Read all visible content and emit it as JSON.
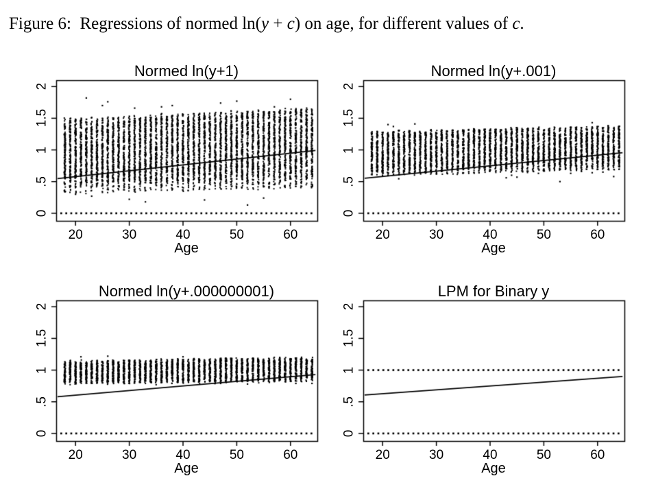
{
  "page": {
    "background": "#ffffff",
    "ink_color": "#000000"
  },
  "caption": {
    "segments": [
      {
        "text": "Figure 6:  Regressions of normed ln(",
        "italic": false
      },
      {
        "text": "y",
        "italic": true
      },
      {
        "text": " + ",
        "italic": false
      },
      {
        "text": "c",
        "italic": true
      },
      {
        "text": ") on age, for different values of ",
        "italic": false
      },
      {
        "text": "c",
        "italic": true
      },
      {
        "text": ".",
        "italic": false
      }
    ]
  },
  "chart_data": [
    {
      "type": "scatter",
      "title": "Normed ln(y+1)",
      "xlabel": "Age",
      "ylabel": "",
      "xlim": [
        16.4,
        65.0
      ],
      "ylim": [
        -0.12,
        2.1
      ],
      "x_ticks": [
        20,
        30,
        40,
        50,
        60
      ],
      "x_tick_labels": [
        "20",
        "30",
        "40",
        "50",
        "60"
      ],
      "y_ticks": [
        0,
        0.5,
        1,
        1.5,
        2
      ],
      "y_tick_labels": [
        "0",
        ".5",
        "1",
        "1.5",
        "2"
      ],
      "dotted_lines": [
        0
      ],
      "regression_line": {
        "x": [
          18,
          64
        ],
        "y": [
          0.56,
          0.985
        ]
      },
      "strips": {
        "ages": [
          18,
          64
        ],
        "seed": 7,
        "core_low": [
          0.5,
          0.575
        ],
        "core_high": [
          1.43,
          1.6
        ],
        "tail_low": [
          0.31,
          0.4
        ],
        "tail_high": [
          1.5,
          1.66
        ],
        "n_core": 115,
        "n_tail_low": 10,
        "n_tail_high": 5
      },
      "outliers": [
        [
          20,
          0.3
        ],
        [
          22,
          1.82
        ],
        [
          23,
          0.27
        ],
        [
          25,
          1.7
        ],
        [
          26,
          1.76
        ],
        [
          30,
          0.22
        ],
        [
          31,
          1.66
        ],
        [
          33,
          0.18
        ],
        [
          36,
          1.68
        ],
        [
          38,
          1.7
        ],
        [
          44,
          0.21
        ],
        [
          47,
          1.74
        ],
        [
          50,
          1.77
        ],
        [
          52,
          0.13
        ],
        [
          55,
          0.24
        ],
        [
          57,
          1.68
        ],
        [
          60,
          1.8
        ],
        [
          63,
          1.66
        ]
      ]
    },
    {
      "type": "scatter",
      "title": "Normed ln(y+.001)",
      "xlabel": "Age",
      "ylabel": "",
      "xlim": [
        16.4,
        65.0
      ],
      "ylim": [
        -0.12,
        2.1
      ],
      "x_ticks": [
        20,
        30,
        40,
        50,
        60
      ],
      "x_tick_labels": [
        "20",
        "30",
        "40",
        "50",
        "60"
      ],
      "y_ticks": [
        0,
        0.5,
        1,
        1.5,
        2
      ],
      "y_tick_labels": [
        "0",
        ".5",
        "1",
        "1.5",
        "2"
      ],
      "dotted_lines": [
        0
      ],
      "regression_line": {
        "x": [
          18,
          64
        ],
        "y": [
          0.565,
          0.95
        ]
      },
      "strips": {
        "ages": [
          18,
          64
        ],
        "seed": 11,
        "core_low": [
          0.67,
          0.77
        ],
        "core_high": [
          1.26,
          1.35
        ],
        "tail_low": [
          0.59,
          0.68
        ],
        "tail_high": [
          1.29,
          1.38
        ],
        "n_core": 85,
        "n_tail_low": 7,
        "n_tail_high": 4
      },
      "outliers": [
        [
          21,
          1.4
        ],
        [
          22,
          1.37
        ],
        [
          23,
          0.545
        ],
        [
          26,
          1.41
        ],
        [
          30,
          0.62
        ],
        [
          43,
          0.56
        ],
        [
          44,
          0.6
        ],
        [
          45,
          0.57
        ],
        [
          49,
          0.63
        ],
        [
          53,
          0.5
        ],
        [
          55,
          0.63
        ],
        [
          57,
          0.66
        ],
        [
          59,
          1.43
        ],
        [
          59,
          0.64
        ],
        [
          61,
          0.65
        ],
        [
          62,
          1.38
        ],
        [
          63,
          0.58
        ]
      ]
    },
    {
      "type": "scatter",
      "title": "Normed ln(y+.000000001)",
      "xlabel": "Age",
      "ylabel": "",
      "xlim": [
        16.4,
        65.0
      ],
      "ylim": [
        -0.12,
        2.1
      ],
      "x_ticks": [
        20,
        30,
        40,
        50,
        60
      ],
      "x_tick_labels": [
        "20",
        "30",
        "40",
        "50",
        "60"
      ],
      "y_ticks": [
        0,
        0.5,
        1,
        1.5,
        2
      ],
      "y_tick_labels": [
        "0",
        ".5",
        "1",
        "1.5",
        "2"
      ],
      "dotted_lines": [
        0
      ],
      "regression_line": {
        "x": [
          18,
          64
        ],
        "y": [
          0.59,
          0.925
        ]
      },
      "strips": {
        "ages": [
          18,
          64
        ],
        "seed": 13,
        "core_low": [
          0.805,
          0.85
        ],
        "core_high": [
          1.125,
          1.18
        ],
        "tail_low": [
          0.78,
          0.81
        ],
        "tail_high": [
          1.15,
          1.2
        ],
        "n_core": 65,
        "n_tail_low": 3,
        "n_tail_high": 3
      },
      "outliers": [
        [
          21,
          1.21
        ],
        [
          26,
          1.22
        ],
        [
          35,
          0.77
        ],
        [
          40,
          1.21
        ],
        [
          47,
          0.79
        ],
        [
          52,
          0.78
        ],
        [
          58,
          1.2
        ],
        [
          61,
          0.79
        ],
        [
          64,
          0.79
        ]
      ]
    },
    {
      "type": "scatter",
      "title": "LPM for Binary y",
      "xlabel": "Age",
      "ylabel": "",
      "xlim": [
        16.4,
        65.0
      ],
      "ylim": [
        -0.12,
        2.1
      ],
      "x_ticks": [
        20,
        30,
        40,
        50,
        60
      ],
      "x_tick_labels": [
        "20",
        "30",
        "40",
        "50",
        "60"
      ],
      "y_ticks": [
        0,
        0.5,
        1,
        1.5,
        2
      ],
      "y_tick_labels": [
        "0",
        ".5",
        "1",
        "1.5",
        "2"
      ],
      "dotted_lines": [
        0,
        1
      ],
      "regression_line": {
        "x": [
          18,
          64
        ],
        "y": [
          0.615,
          0.895
        ]
      },
      "strips": null,
      "outliers": []
    }
  ]
}
